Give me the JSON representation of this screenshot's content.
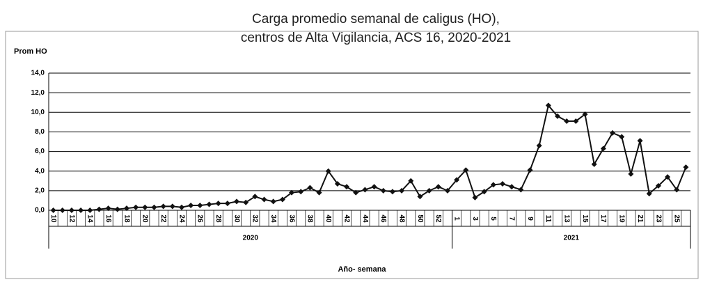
{
  "chart_data": {
    "type": "line",
    "title": [
      "Carga promedio semanal de caligus (HO),",
      "centros de Alta Vigilancia, ACS 16, 2020-2021"
    ],
    "y_label": "Prom HO",
    "x_label": "Año- semana",
    "category_groups": [
      {
        "name": "2020",
        "categories": [
          "10",
          null,
          "12",
          null,
          "14",
          null,
          "16",
          null,
          "18",
          null,
          "20",
          null,
          "22",
          null,
          "24",
          null,
          "26",
          null,
          "28",
          null,
          "30",
          null,
          "32",
          null,
          "34",
          null,
          "36",
          null,
          "38",
          null,
          "40",
          null,
          "42",
          null,
          "44",
          null,
          "46",
          null,
          "48",
          null,
          "50",
          null,
          "52",
          null
        ]
      },
      {
        "name": "2021",
        "categories": [
          "1",
          null,
          "3",
          null,
          "5",
          null,
          "7",
          null,
          "9",
          null,
          "11",
          null,
          "13",
          null,
          "15",
          null,
          "17",
          null,
          "19",
          null,
          "21",
          null,
          "23",
          null,
          "25",
          null
        ]
      }
    ],
    "series": [
      {
        "name": "Prom HO",
        "color": "#111111",
        "values": [
          0.0,
          0.0,
          0.0,
          0.0,
          0.0,
          0.1,
          0.2,
          0.1,
          0.2,
          0.3,
          0.3,
          0.3,
          0.4,
          0.4,
          0.3,
          0.5,
          0.5,
          0.6,
          0.7,
          0.7,
          0.9,
          0.8,
          1.4,
          1.1,
          0.9,
          1.1,
          1.8,
          1.9,
          2.3,
          1.8,
          4.0,
          2.7,
          2.4,
          1.8,
          2.1,
          2.4,
          2.0,
          1.9,
          2.0,
          3.0,
          1.4,
          2.0,
          2.4,
          2.0,
          3.1,
          4.1,
          1.3,
          1.9,
          2.6,
          2.7,
          2.4,
          2.1,
          4.1,
          6.6,
          10.7,
          9.6,
          9.1,
          9.1,
          9.8,
          4.7,
          6.3,
          7.9,
          7.5,
          3.7,
          7.1,
          1.7,
          2.5,
          3.4,
          2.1,
          4.4
        ]
      }
    ],
    "ylim": [
      0,
      14
    ],
    "yticks": [
      {
        "value": 0,
        "label": "0,0"
      },
      {
        "value": 2,
        "label": "2,0"
      },
      {
        "value": 4,
        "label": "4,0"
      },
      {
        "value": 6,
        "label": "6,0"
      },
      {
        "value": 8,
        "label": "8,0"
      },
      {
        "value": 10,
        "label": "10,0"
      },
      {
        "value": 12,
        "label": "12,0"
      },
      {
        "value": 14,
        "label": "14,0"
      }
    ],
    "grid": true
  }
}
